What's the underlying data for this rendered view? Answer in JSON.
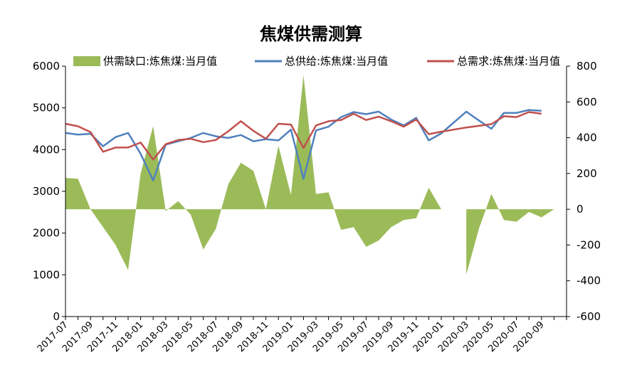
{
  "chart_data": {
    "type": "bar+line",
    "title": "焦煤供需测算",
    "categories": [
      "2017-07",
      "2017-08",
      "2017-09",
      "2017-10",
      "2017-11",
      "2017-12",
      "2018-01",
      "2018-02",
      "2018-03",
      "2018-04",
      "2018-05",
      "2018-06",
      "2018-07",
      "2018-08",
      "2018-09",
      "2018-10",
      "2018-11",
      "2018-12",
      "2019-01",
      "2019-02",
      "2019-03",
      "2019-04",
      "2019-05",
      "2019-06",
      "2019-07",
      "2019-08",
      "2019-09",
      "2019-10",
      "2019-11",
      "2019-12",
      "2020-01",
      "2020-02",
      "2020-03",
      "2020-04",
      "2020-05",
      "2020-06",
      "2020-07",
      "2020-08",
      "2020-09",
      "2020-10"
    ],
    "x_tick_labels": [
      "2017-07",
      "2017-09",
      "2017-11",
      "2018-01",
      "2018-03",
      "2018-05",
      "2018-07",
      "2018-09",
      "2018-11",
      "2019-01",
      "2019-03",
      "2019-05",
      "2019-07",
      "2019-09",
      "2019-11",
      "2020-01",
      "2020-03",
      "2020-05",
      "2020-07",
      "2020-09"
    ],
    "left_axis": {
      "ylim": [
        0,
        6000
      ],
      "ticks": [
        0,
        1000,
        2000,
        3000,
        4000,
        5000,
        6000
      ]
    },
    "right_axis": {
      "ylim": [
        -600,
        800
      ],
      "ticks": [
        -600,
        -400,
        -200,
        0,
        200,
        400,
        600,
        800
      ]
    },
    "series": [
      {
        "name": "供需缺口:炼焦煤:当月值",
        "kind": "area",
        "axis": "right",
        "color": "#9BBB59",
        "values": [
          175,
          170,
          0,
          -100,
          -200,
          -340,
          200,
          465,
          -10,
          45,
          -30,
          -225,
          -110,
          140,
          260,
          215,
          0,
          355,
          80,
          750,
          85,
          95,
          -115,
          -100,
          -210,
          -175,
          -100,
          -60,
          -50,
          120,
          0,
          null,
          -365,
          -110,
          85,
          -60,
          -70,
          -15,
          -45,
          0
        ]
      },
      {
        "name": "总供给:炼焦煤:当月值",
        "kind": "line",
        "axis": "left",
        "color": "#4F81BD",
        "values": [
          4400,
          4360,
          4380,
          4080,
          4300,
          4400,
          3900,
          3260,
          4120,
          4200,
          4280,
          4400,
          4320,
          4280,
          4350,
          4200,
          4250,
          4220,
          4480,
          3300,
          4460,
          4550,
          4780,
          4900,
          4850,
          4910,
          4720,
          4580,
          4760,
          4220,
          4390,
          4650,
          4910,
          4700,
          4500,
          4880,
          4880,
          4950,
          4930,
          null
        ]
      },
      {
        "name": "总需求:炼焦煤:当月值",
        "kind": "line",
        "axis": "left",
        "color": "#C0504D",
        "values": [
          4620,
          4560,
          4420,
          3950,
          4050,
          4050,
          4170,
          3760,
          4130,
          4230,
          4260,
          4180,
          4230,
          4440,
          4680,
          4450,
          4260,
          4620,
          4600,
          4040,
          4580,
          4680,
          4710,
          4860,
          4710,
          4790,
          4680,
          4550,
          4720,
          4370,
          4430,
          4480,
          4530,
          4570,
          4610,
          4800,
          4780,
          4900,
          4860,
          null
        ]
      }
    ],
    "legend": {
      "position": "top",
      "entries": [
        "供需缺口:炼焦煤:当月值",
        "总供给:炼焦煤:当月值",
        "总需求:炼焦煤:当月值"
      ]
    },
    "grid": false
  }
}
